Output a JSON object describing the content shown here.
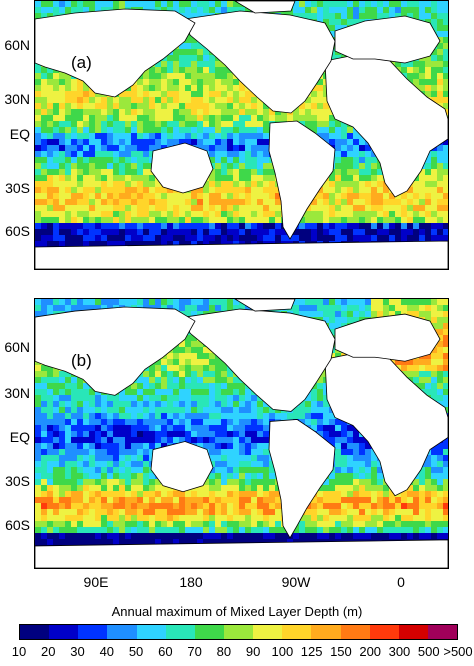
{
  "panels": [
    {
      "label": "(a)"
    },
    {
      "label": "(b)"
    }
  ],
  "latitude_labels": [
    "60N",
    "30N",
    "EQ",
    "30S",
    "60S"
  ],
  "longitude_labels": [
    "90E",
    "180",
    "90W",
    "0"
  ],
  "colorbar": {
    "title": "Annual maximum of Mixed Layer Depth (m)",
    "ticks": [
      "10",
      "20",
      "30",
      "40",
      "50",
      "60",
      "70",
      "80",
      "90",
      "100",
      "125",
      "150",
      "200",
      "300",
      "500",
      ">500"
    ],
    "colors": [
      "#00007f",
      "#0000c8",
      "#0033ff",
      "#1f8fff",
      "#2fd3ff",
      "#29e6b8",
      "#3fd84a",
      "#9be83c",
      "#eef242",
      "#ffd52a",
      "#ffab1e",
      "#ff7a14",
      "#ff3a0c",
      "#d40000",
      "#a0005a"
    ]
  }
}
